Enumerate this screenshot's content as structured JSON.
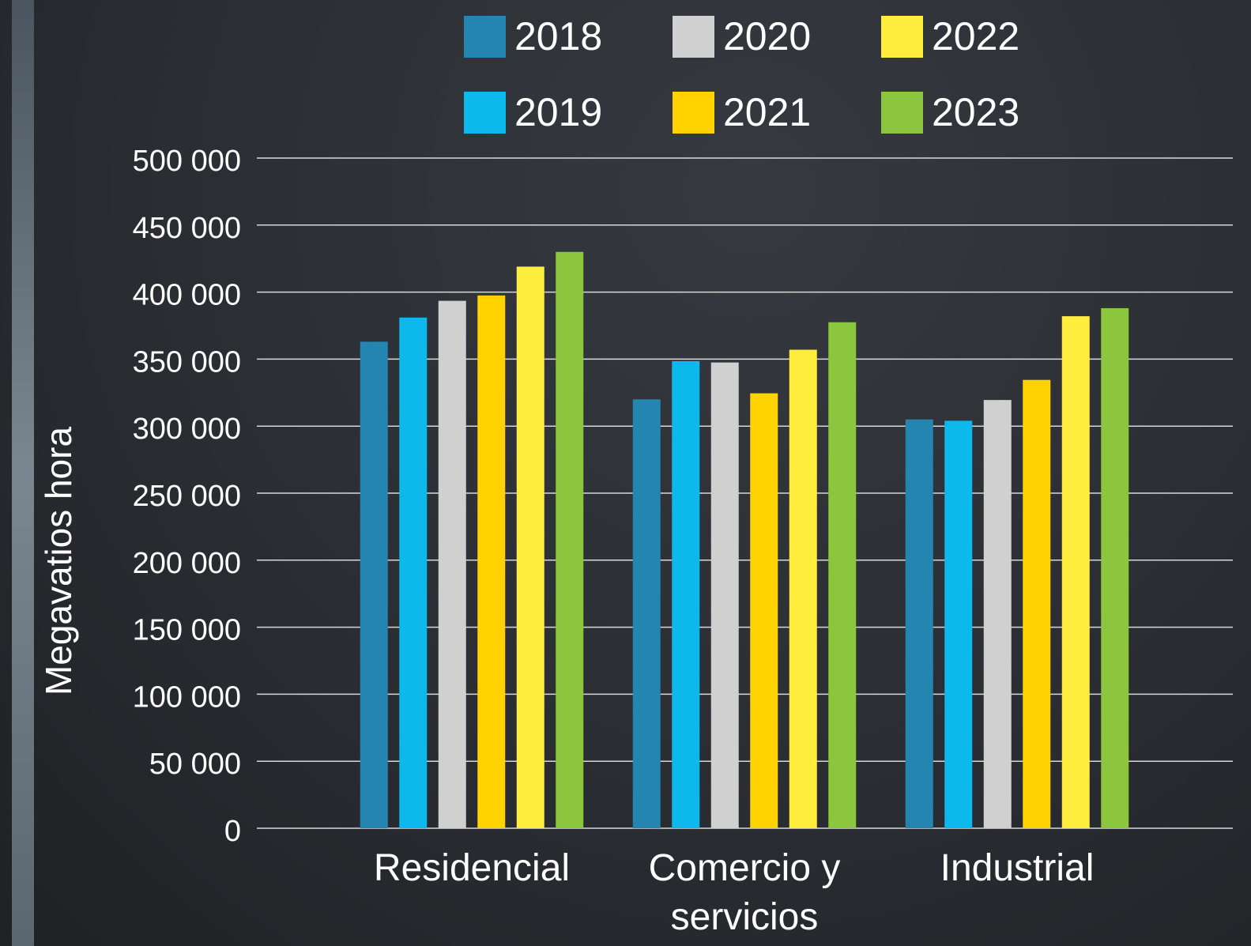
{
  "chart_data": {
    "type": "bar",
    "y_label": "Megavatios hora",
    "categories": [
      "Residencial",
      "Comercio y servicios",
      "Industrial"
    ],
    "series": [
      {
        "name": "2018",
        "color": "#2385b0",
        "values": [
          363000,
          320000,
          305000
        ]
      },
      {
        "name": "2019",
        "color": "#0db8ec",
        "values": [
          381000,
          348500,
          304000
        ]
      },
      {
        "name": "2020",
        "color": "#d0d0d0",
        "values": [
          393500,
          347500,
          319500
        ]
      },
      {
        "name": "2021",
        "color": "#ffd200",
        "values": [
          397500,
          324500,
          334500
        ]
      },
      {
        "name": "2022",
        "color": "#ffee3d",
        "values": [
          419000,
          357000,
          382000
        ]
      },
      {
        "name": "2023",
        "color": "#8cc63f",
        "values": [
          430000,
          377500,
          388000
        ]
      }
    ],
    "ylim": [
      0,
      500000
    ],
    "yticks": [
      0,
      {
        "value": 50000,
        "label": "50 000"
      },
      {
        "value": 100000,
        "label": "100 000"
      },
      {
        "value": 150000,
        "label": "150 000"
      },
      {
        "value": 200000,
        "label": "200 000"
      },
      {
        "value": 250000,
        "label": "250 000"
      },
      {
        "value": 300000,
        "label": "300 000"
      },
      {
        "value": 350000,
        "label": "350 000"
      },
      {
        "value": 400000,
        "label": "400 000"
      },
      {
        "value": 450000,
        "label": "450 000"
      },
      {
        "value": 500000,
        "label": "500 000"
      }
    ],
    "grid": true,
    "legend": "top"
  }
}
